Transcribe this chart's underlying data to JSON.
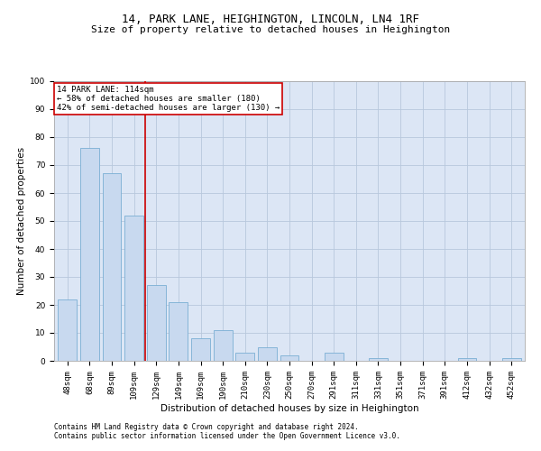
{
  "title1": "14, PARK LANE, HEIGHINGTON, LINCOLN, LN4 1RF",
  "title2": "Size of property relative to detached houses in Heighington",
  "xlabel": "Distribution of detached houses by size in Heighington",
  "ylabel": "Number of detached properties",
  "categories": [
    "48sqm",
    "68sqm",
    "89sqm",
    "109sqm",
    "129sqm",
    "149sqm",
    "169sqm",
    "190sqm",
    "210sqm",
    "230sqm",
    "250sqm",
    "270sqm",
    "291sqm",
    "311sqm",
    "331sqm",
    "351sqm",
    "371sqm",
    "391sqm",
    "412sqm",
    "432sqm",
    "452sqm"
  ],
  "values": [
    22,
    76,
    67,
    52,
    27,
    21,
    8,
    11,
    3,
    5,
    2,
    0,
    3,
    0,
    1,
    0,
    0,
    0,
    1,
    0,
    1
  ],
  "bar_color": "#c8d9ef",
  "bar_edgecolor": "#7aafd4",
  "bar_linewidth": 0.6,
  "grid_color": "#b8c8dc",
  "bg_color": "#dce6f5",
  "annotation_line_label": "14 PARK LANE: 114sqm",
  "annotation_text_line2": "← 58% of detached houses are smaller (180)",
  "annotation_text_line3": "42% of semi-detached houses are larger (130) →",
  "annotation_box_color": "#ffffff",
  "annotation_line_color": "#cc0000",
  "ylim": [
    0,
    100
  ],
  "yticks": [
    0,
    10,
    20,
    30,
    40,
    50,
    60,
    70,
    80,
    90,
    100
  ],
  "footnote1": "Contains HM Land Registry data © Crown copyright and database right 2024.",
  "footnote2": "Contains public sector information licensed under the Open Government Licence v3.0.",
  "title_fontsize": 9,
  "subtitle_fontsize": 8,
  "axis_label_fontsize": 7.5,
  "tick_fontsize": 6.5,
  "annotation_fontsize": 6.5,
  "footnote_fontsize": 5.5,
  "red_line_x": 3.5
}
